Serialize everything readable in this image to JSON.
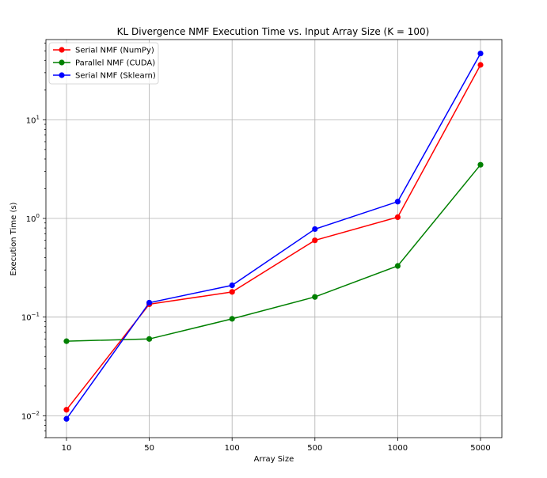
{
  "chart_data": {
    "type": "line",
    "title": "KL Divergence NMF Execution Time vs. Input Array Size (K = 100)",
    "xlabel": "Array Size",
    "ylabel": "Execution Time (s)",
    "categories": [
      "10",
      "50",
      "100",
      "500",
      "1000",
      "5000"
    ],
    "y_scale": "log",
    "ylim": [
      0.006,
      65
    ],
    "y_ticks": [
      {
        "value": 0.01,
        "base": "10",
        "exp": "−2"
      },
      {
        "value": 0.1,
        "base": "10",
        "exp": "−1"
      },
      {
        "value": 1,
        "base": "10",
        "exp": "0"
      },
      {
        "value": 10,
        "base": "10",
        "exp": "1"
      }
    ],
    "grid": true,
    "legend_position": "top-left",
    "series": [
      {
        "name": "Serial NMF (NumPy)",
        "color": "#ff0000",
        "values": [
          0.0115,
          0.135,
          0.18,
          0.6,
          1.03,
          36
        ]
      },
      {
        "name": "Parallel NMF (CUDA)",
        "color": "#008000",
        "values": [
          0.057,
          0.06,
          0.096,
          0.16,
          0.33,
          3.5
        ]
      },
      {
        "name": "Serial NMF (Sklearn)",
        "color": "#0000ff",
        "values": [
          0.0093,
          0.14,
          0.21,
          0.78,
          1.48,
          47
        ]
      }
    ]
  }
}
